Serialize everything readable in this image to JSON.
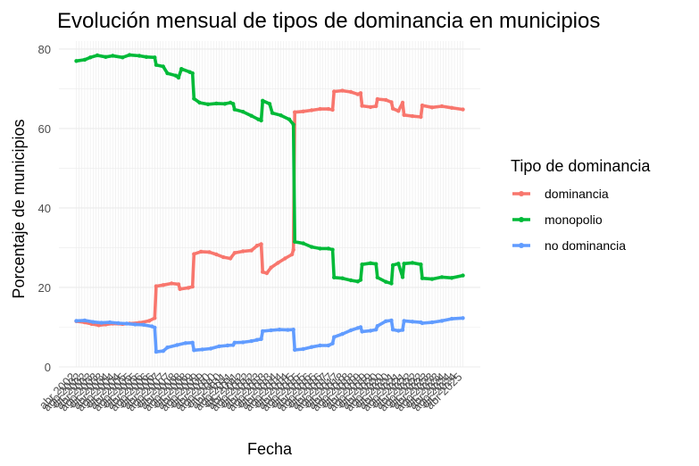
{
  "chart_data": {
    "type": "line",
    "title": "Evolución mensual de tipos de dominancia en municipios",
    "xlabel": "Fecha",
    "ylabel": "Porcentaje de municipios",
    "ylim": [
      0,
      82
    ],
    "y_ticks": [
      0,
      20,
      40,
      60,
      80
    ],
    "x_tick_labels": [
      "abr 2002",
      "ago 2002",
      "dic 2002",
      "abr 2003",
      "ago 2003",
      "dic 2003",
      "abr 2004",
      "ago 2004",
      "dic 2004",
      "abr 2005",
      "ago 2005",
      "dic 2005",
      "abr 2006",
      "ago 2006",
      "dic 2006",
      "abr 2007",
      "ago 2007",
      "dic 2007",
      "abr 2008",
      "ago 2008",
      "dic 2008",
      "abr 2009",
      "ago 2009",
      "dic 2009",
      "abr 2010",
      "ago 2010",
      "dic 2010",
      "abr 2011",
      "ago 2011",
      "dic 2011",
      "abr 2012",
      "ago 2012",
      "dic 2012",
      "abr 2013",
      "ago 2013",
      "dic 2013",
      "abr 2014",
      "ago 2014",
      "dic 2014",
      "abr 2015",
      "ago 2015",
      "dic 2015",
      "abr 2016",
      "ago 2016",
      "dic 2016",
      "abr 2017",
      "ago 2017",
      "dic 2017",
      "abr 2018",
      "ago 2018",
      "dic 2018",
      "abr 2019",
      "ago 2019",
      "dic 2019",
      "abr 2020",
      "ago 2020",
      "dic 2020",
      "abr 2021",
      "ago 2021",
      "dic 2021",
      "abr 2022",
      "ago 2022",
      "dic 2022",
      "abr 2023",
      "ago 2023",
      "dic 2023",
      "abr 2024",
      "ago 2024",
      "dic 2024",
      "abr 2025"
    ],
    "x_range": [
      "2002-04",
      "2025-04"
    ],
    "legend_title": "Tipo de dominancia",
    "legend_position": "right",
    "grid": true,
    "series": [
      {
        "name": "dominancia",
        "color": "#F8766D",
        "points": [
          [
            "2002-04",
            11.5
          ],
          [
            "2002-10",
            11.2
          ],
          [
            "2003-03",
            10.8
          ],
          [
            "2003-08",
            10.5
          ],
          [
            "2004-01",
            10.7
          ],
          [
            "2004-06",
            10.9
          ],
          [
            "2005-01",
            10.8
          ],
          [
            "2005-06",
            10.9
          ],
          [
            "2006-01",
            11.1
          ],
          [
            "2006-08",
            11.6
          ],
          [
            "2006-12",
            12.3
          ],
          [
            "2007-01",
            20.3
          ],
          [
            "2007-06",
            20.6
          ],
          [
            "2007-12",
            21.0
          ],
          [
            "2008-05",
            20.8
          ],
          [
            "2008-06",
            19.6
          ],
          [
            "2008-12",
            19.9
          ],
          [
            "2009-03",
            20.2
          ],
          [
            "2009-04",
            28.4
          ],
          [
            "2009-09",
            29.0
          ],
          [
            "2010-03",
            28.9
          ],
          [
            "2010-08",
            28.3
          ],
          [
            "2011-01",
            27.6
          ],
          [
            "2011-06",
            27.3
          ],
          [
            "2011-09",
            28.7
          ],
          [
            "2012-03",
            29.1
          ],
          [
            "2012-09",
            29.3
          ],
          [
            "2013-01",
            30.5
          ],
          [
            "2013-04",
            30.9
          ],
          [
            "2013-05",
            23.9
          ],
          [
            "2013-08",
            23.6
          ],
          [
            "2013-11",
            25.0
          ],
          [
            "2014-04",
            26.2
          ],
          [
            "2014-09",
            27.3
          ],
          [
            "2015-02",
            28.3
          ],
          [
            "2015-03",
            29.5
          ],
          [
            "2015-04",
            64.1
          ],
          [
            "2015-10",
            64.3
          ],
          [
            "2016-04",
            64.6
          ],
          [
            "2016-10",
            64.9
          ],
          [
            "2017-04",
            64.9
          ],
          [
            "2017-07",
            64.7
          ],
          [
            "2017-08",
            69.3
          ],
          [
            "2018-02",
            69.5
          ],
          [
            "2018-08",
            69.2
          ],
          [
            "2019-01",
            68.6
          ],
          [
            "2019-03",
            68.9
          ],
          [
            "2019-04",
            65.7
          ],
          [
            "2019-10",
            65.4
          ],
          [
            "2020-02",
            65.6
          ],
          [
            "2020-03",
            67.4
          ],
          [
            "2020-09",
            67.2
          ],
          [
            "2021-01",
            66.6
          ],
          [
            "2021-02",
            65.0
          ],
          [
            "2021-06",
            64.4
          ],
          [
            "2021-09",
            66.5
          ],
          [
            "2021-10",
            63.4
          ],
          [
            "2022-04",
            63.1
          ],
          [
            "2022-10",
            62.9
          ],
          [
            "2022-11",
            65.8
          ],
          [
            "2023-06",
            65.3
          ],
          [
            "2024-01",
            65.6
          ],
          [
            "2024-08",
            65.2
          ],
          [
            "2025-04",
            64.8
          ]
        ]
      },
      {
        "name": "monopolio",
        "color": "#00BA38",
        "points": [
          [
            "2002-04",
            77.0
          ],
          [
            "2002-10",
            77.3
          ],
          [
            "2003-02",
            77.9
          ],
          [
            "2003-07",
            78.4
          ],
          [
            "2004-01",
            78.0
          ],
          [
            "2004-06",
            78.3
          ],
          [
            "2005-01",
            77.9
          ],
          [
            "2005-06",
            78.5
          ],
          [
            "2006-01",
            78.3
          ],
          [
            "2006-06",
            78.0
          ],
          [
            "2006-12",
            77.9
          ],
          [
            "2007-01",
            76.0
          ],
          [
            "2007-06",
            75.6
          ],
          [
            "2007-09",
            73.9
          ],
          [
            "2008-03",
            73.3
          ],
          [
            "2008-05",
            72.8
          ],
          [
            "2008-07",
            75.0
          ],
          [
            "2009-01",
            74.2
          ],
          [
            "2009-03",
            73.9
          ],
          [
            "2009-04",
            67.5
          ],
          [
            "2009-08",
            66.5
          ],
          [
            "2010-02",
            66.1
          ],
          [
            "2010-08",
            66.3
          ],
          [
            "2011-02",
            66.2
          ],
          [
            "2011-06",
            66.5
          ],
          [
            "2011-08",
            66.2
          ],
          [
            "2011-09",
            64.8
          ],
          [
            "2012-03",
            64.2
          ],
          [
            "2012-09",
            63.2
          ],
          [
            "2013-02",
            62.3
          ],
          [
            "2013-04",
            62.0
          ],
          [
            "2013-05",
            67.0
          ],
          [
            "2013-10",
            66.2
          ],
          [
            "2013-12",
            63.9
          ],
          [
            "2014-06",
            63.3
          ],
          [
            "2014-12",
            62.3
          ],
          [
            "2015-03",
            61.0
          ],
          [
            "2015-04",
            31.5
          ],
          [
            "2015-10",
            31.1
          ],
          [
            "2016-04",
            30.2
          ],
          [
            "2016-10",
            29.8
          ],
          [
            "2017-04",
            29.8
          ],
          [
            "2017-07",
            29.5
          ],
          [
            "2017-08",
            22.5
          ],
          [
            "2018-02",
            22.3
          ],
          [
            "2018-08",
            21.8
          ],
          [
            "2019-01",
            21.5
          ],
          [
            "2019-03",
            21.9
          ],
          [
            "2019-04",
            25.8
          ],
          [
            "2019-10",
            26.1
          ],
          [
            "2020-02",
            25.9
          ],
          [
            "2020-03",
            22.5
          ],
          [
            "2020-09",
            21.4
          ],
          [
            "2021-01",
            21.0
          ],
          [
            "2021-02",
            25.6
          ],
          [
            "2021-06",
            26.0
          ],
          [
            "2021-09",
            22.6
          ],
          [
            "2021-10",
            26.0
          ],
          [
            "2022-04",
            26.2
          ],
          [
            "2022-10",
            25.8
          ],
          [
            "2022-11",
            22.3
          ],
          [
            "2023-06",
            22.1
          ],
          [
            "2024-01",
            22.6
          ],
          [
            "2024-08",
            22.4
          ],
          [
            "2025-04",
            23.0
          ]
        ]
      },
      {
        "name": "no dominancia",
        "color": "#619CFF",
        "points": [
          [
            "2002-04",
            11.6
          ],
          [
            "2002-10",
            11.7
          ],
          [
            "2003-04",
            11.3
          ],
          [
            "2003-10",
            11.1
          ],
          [
            "2004-04",
            11.2
          ],
          [
            "2004-10",
            11.0
          ],
          [
            "2005-04",
            10.9
          ],
          [
            "2005-10",
            10.7
          ],
          [
            "2006-04",
            10.6
          ],
          [
            "2006-10",
            10.2
          ],
          [
            "2006-12",
            9.9
          ],
          [
            "2007-01",
            3.8
          ],
          [
            "2007-06",
            4.0
          ],
          [
            "2007-09",
            4.9
          ],
          [
            "2008-04",
            5.5
          ],
          [
            "2008-10",
            6.0
          ],
          [
            "2009-03",
            6.1
          ],
          [
            "2009-04",
            4.2
          ],
          [
            "2009-10",
            4.4
          ],
          [
            "2010-04",
            4.6
          ],
          [
            "2010-10",
            5.2
          ],
          [
            "2011-04",
            5.4
          ],
          [
            "2011-08",
            5.5
          ],
          [
            "2011-09",
            6.1
          ],
          [
            "2012-03",
            6.2
          ],
          [
            "2012-09",
            6.5
          ],
          [
            "2013-01",
            6.8
          ],
          [
            "2013-04",
            7.0
          ],
          [
            "2013-05",
            9.0
          ],
          [
            "2013-11",
            9.2
          ],
          [
            "2014-05",
            9.4
          ],
          [
            "2014-11",
            9.3
          ],
          [
            "2015-03",
            9.4
          ],
          [
            "2015-04",
            4.3
          ],
          [
            "2015-10",
            4.5
          ],
          [
            "2016-04",
            5.0
          ],
          [
            "2016-10",
            5.4
          ],
          [
            "2017-04",
            5.4
          ],
          [
            "2017-07",
            5.9
          ],
          [
            "2017-08",
            7.5
          ],
          [
            "2018-02",
            8.3
          ],
          [
            "2018-08",
            9.2
          ],
          [
            "2019-01",
            9.8
          ],
          [
            "2019-03",
            10.0
          ],
          [
            "2019-04",
            8.9
          ],
          [
            "2019-10",
            9.1
          ],
          [
            "2020-02",
            9.4
          ],
          [
            "2020-03",
            10.3
          ],
          [
            "2020-09",
            11.5
          ],
          [
            "2021-01",
            11.7
          ],
          [
            "2021-02",
            9.4
          ],
          [
            "2021-06",
            9.1
          ],
          [
            "2021-09",
            9.3
          ],
          [
            "2021-10",
            11.6
          ],
          [
            "2022-04",
            11.4
          ],
          [
            "2022-10",
            11.2
          ],
          [
            "2022-11",
            11.0
          ],
          [
            "2023-06",
            11.2
          ],
          [
            "2024-01",
            11.6
          ],
          [
            "2024-08",
            12.1
          ],
          [
            "2025-04",
            12.3
          ]
        ]
      }
    ]
  }
}
